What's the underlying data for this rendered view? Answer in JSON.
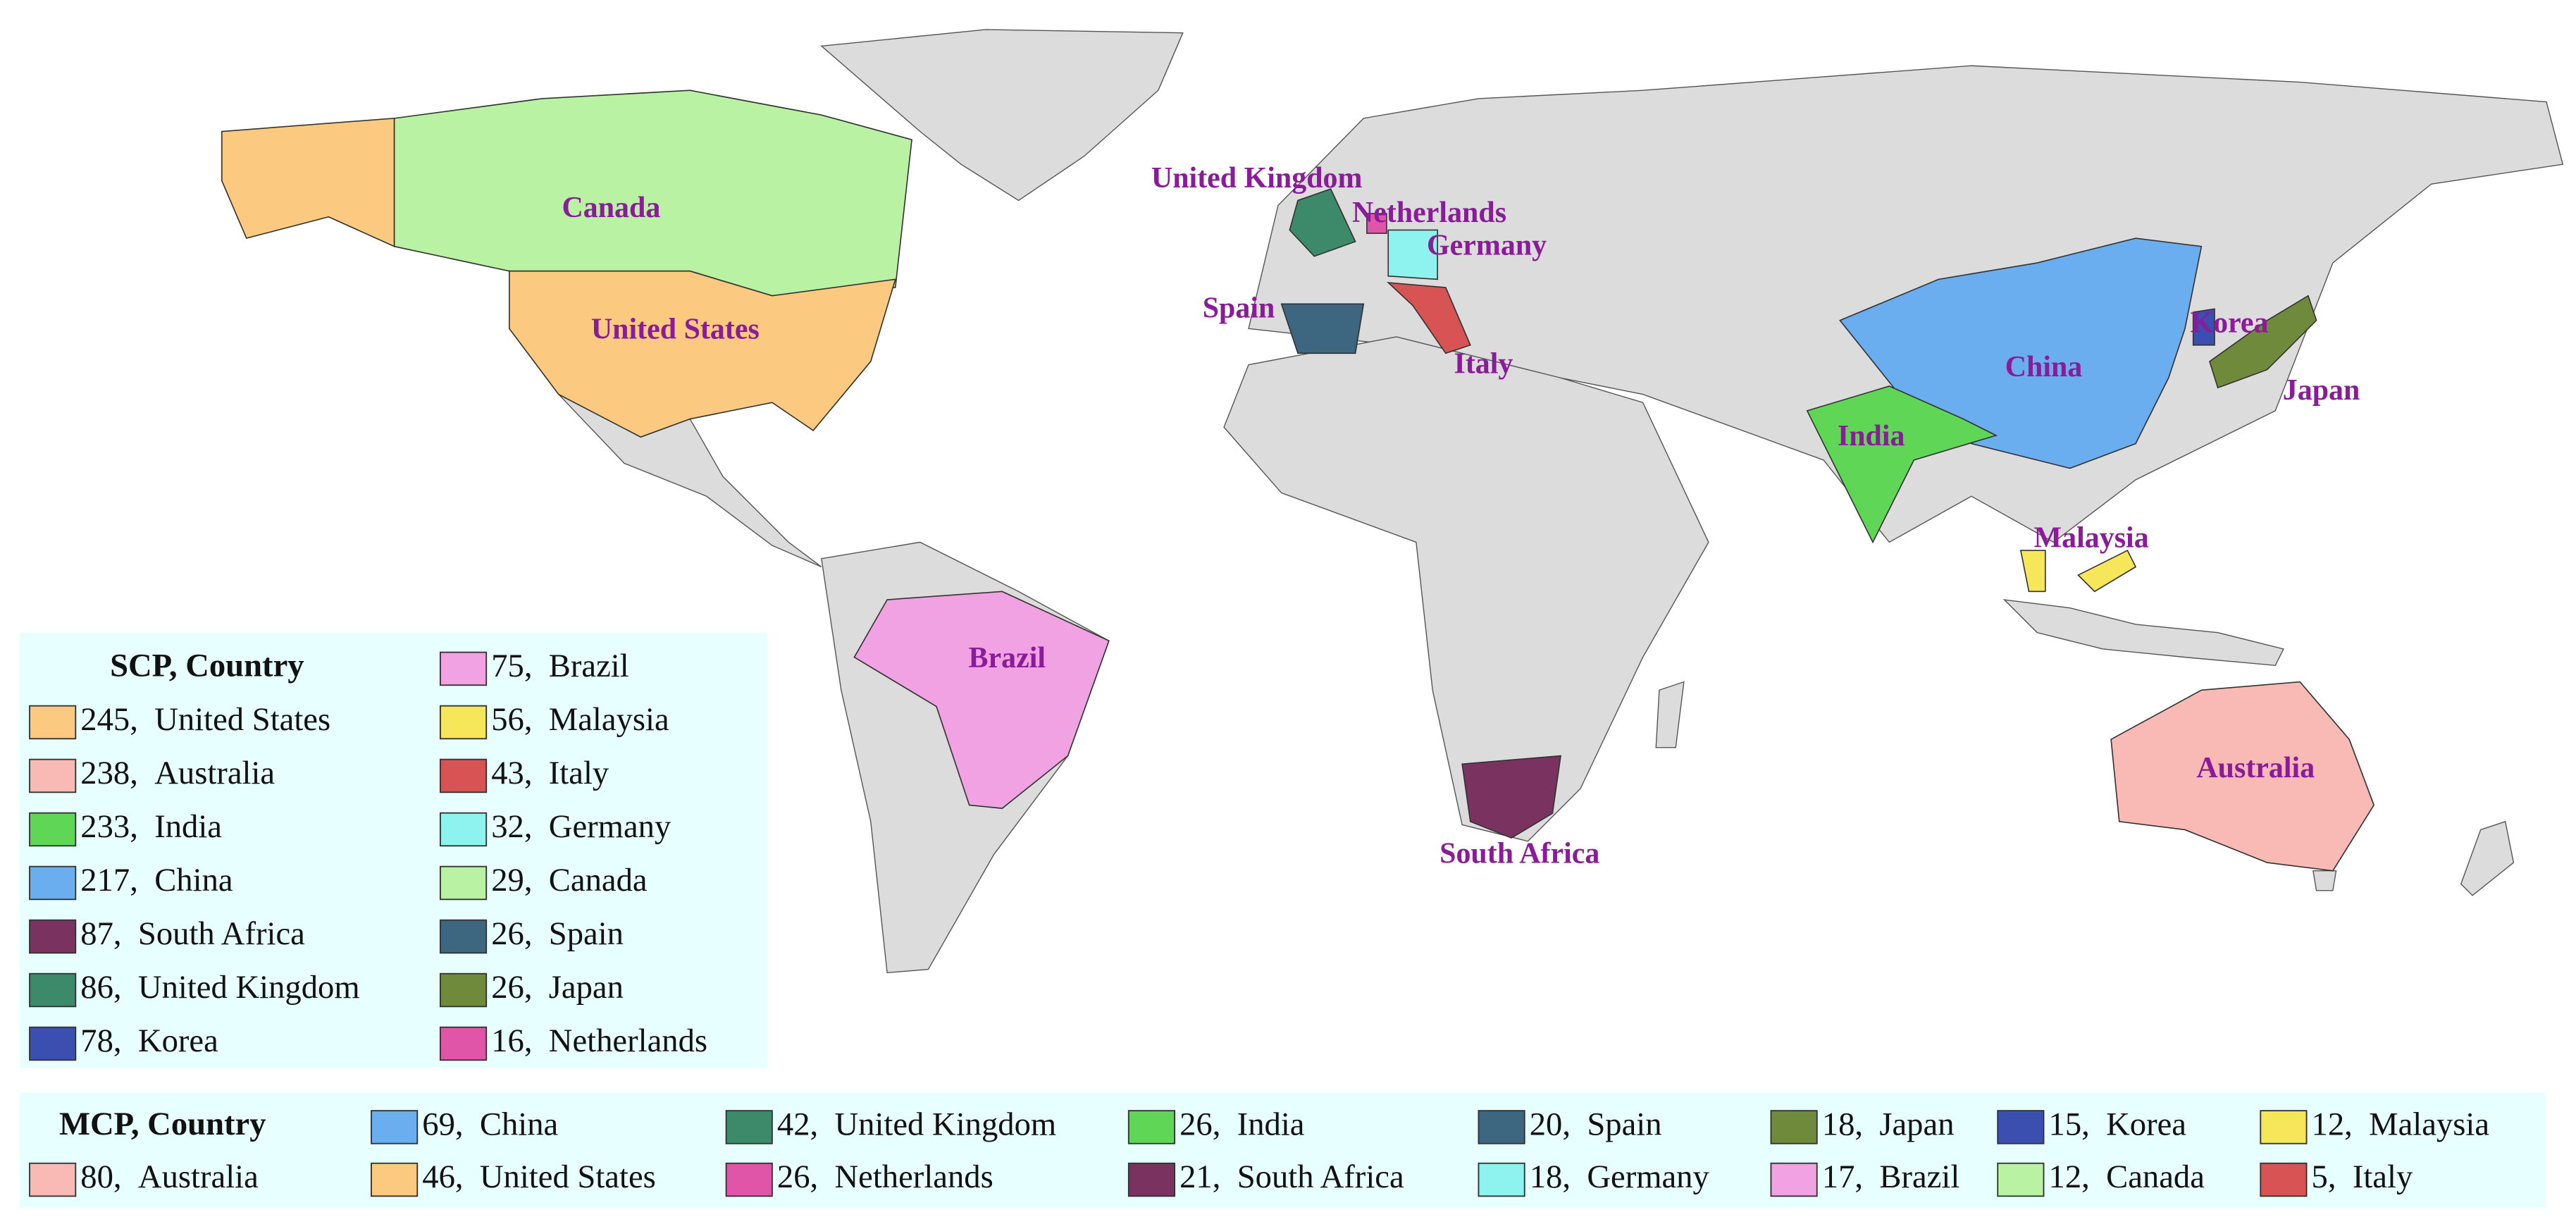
{
  "map_labels": [
    "Canada",
    "United States",
    "Brazil",
    "United Kingdom",
    "Netherlands",
    "Germany",
    "Spain",
    "Italy",
    "China",
    "Korea",
    "Japan",
    "India",
    "Malaysia",
    "Australia",
    "South Africa"
  ],
  "scp_legend": {
    "title": "SCP, Country",
    "entries": [
      {
        "value": 245,
        "value_label": "245,",
        "country": "United States",
        "color": "#fbc97f"
      },
      {
        "value": 238,
        "value_label": "238,",
        "country": "Australia",
        "color": "#f9bab6"
      },
      {
        "value": 233,
        "value_label": "233,",
        "country": "India",
        "color": "#60d656"
      },
      {
        "value": 217,
        "value_label": "217,",
        "country": "China",
        "color": "#6aaef0"
      },
      {
        "value": 87,
        "value_label": "87,",
        "country": "South Africa",
        "color": "#7a3260"
      },
      {
        "value": 86,
        "value_label": "86,",
        "country": "United Kingdom",
        "color": "#3d8a6a"
      },
      {
        "value": 78,
        "value_label": "78,",
        "country": "Korea",
        "color": "#3a4fb0"
      },
      {
        "value": 75,
        "value_label": "75,",
        "country": "Brazil",
        "color": "#f0a2e2"
      },
      {
        "value": 56,
        "value_label": "56,",
        "country": "Malaysia",
        "color": "#f6e65a"
      },
      {
        "value": 43,
        "value_label": "43,",
        "country": "Italy",
        "color": "#d85454"
      },
      {
        "value": 32,
        "value_label": "32,",
        "country": "Germany",
        "color": "#8ef2ee"
      },
      {
        "value": 29,
        "value_label": "29,",
        "country": "Canada",
        "color": "#b8f2a2"
      },
      {
        "value": 26,
        "value_label": "26,",
        "country": "Spain",
        "color": "#3d6680"
      },
      {
        "value": 26,
        "value_label": "26,",
        "country": "Japan",
        "color": "#6f8a3a"
      },
      {
        "value": 16,
        "value_label": "16,",
        "country": "Netherlands",
        "color": "#e055a8"
      }
    ]
  },
  "mcp_legend": {
    "title": "MCP, Country",
    "entries": [
      {
        "value": 69,
        "value_label": "69,",
        "country": "China",
        "color": "#6aaef0"
      },
      {
        "value": 42,
        "value_label": "42,",
        "country": "United Kingdom",
        "color": "#3d8a6a"
      },
      {
        "value": 26,
        "value_label": "26,",
        "country": "India",
        "color": "#60d656"
      },
      {
        "value": 20,
        "value_label": "20,",
        "country": "Spain",
        "color": "#3d6680"
      },
      {
        "value": 18,
        "value_label": "18,",
        "country": "Japan",
        "color": "#6f8a3a"
      },
      {
        "value": 15,
        "value_label": "15,",
        "country": "Korea",
        "color": "#3a4fb0"
      },
      {
        "value": 12,
        "value_label": "12,",
        "country": "Malaysia",
        "color": "#f6e65a"
      },
      {
        "value": 80,
        "value_label": "80,",
        "country": "Australia",
        "color": "#f9bab6"
      },
      {
        "value": 46,
        "value_label": "46,",
        "country": "United States",
        "color": "#fbc97f"
      },
      {
        "value": 26,
        "value_label": "26,",
        "country": "Netherlands",
        "color": "#e055a8"
      },
      {
        "value": 21,
        "value_label": "21,",
        "country": "South Africa",
        "color": "#7a3260"
      },
      {
        "value": 18,
        "value_label": "18,",
        "country": "Germany",
        "color": "#8ef2ee"
      },
      {
        "value": 17,
        "value_label": "17,",
        "country": "Brazil",
        "color": "#f0a2e2"
      },
      {
        "value": 12,
        "value_label": "12,",
        "country": "Canada",
        "color": "#b8f2a2"
      },
      {
        "value": 5,
        "value_label": "5,",
        "country": "Italy",
        "color": "#d85454"
      }
    ]
  }
}
